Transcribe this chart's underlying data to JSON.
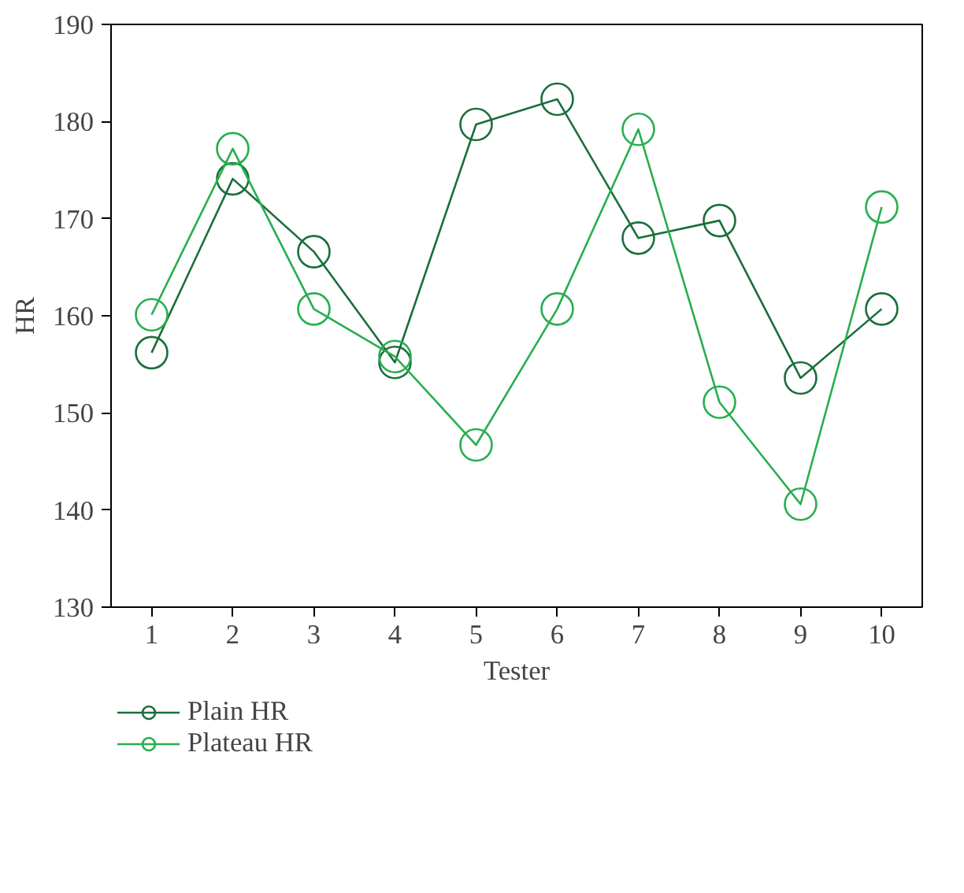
{
  "chart_data": {
    "type": "line",
    "xlabel": "Tester",
    "ylabel": "HR",
    "x": [
      1,
      2,
      3,
      4,
      5,
      6,
      7,
      8,
      9,
      10
    ],
    "xlim": [
      0.5,
      10.5
    ],
    "xticks": [
      1,
      2,
      3,
      4,
      5,
      6,
      7,
      8,
      9,
      10
    ],
    "ylim": [
      130,
      190
    ],
    "yticks": [
      130,
      140,
      150,
      160,
      170,
      180,
      190
    ],
    "series": [
      {
        "name": "Plain HR",
        "color": "#1b6e3c",
        "values": [
          156.2,
          174.1,
          166.6,
          155.2,
          179.7,
          182.3,
          168.0,
          169.8,
          153.6,
          160.7
        ]
      },
      {
        "name": "Plateau HR",
        "color": "#27ae4f",
        "values": [
          160.1,
          177.2,
          160.7,
          155.8,
          146.7,
          160.7,
          179.2,
          151.1,
          140.6,
          171.2
        ]
      }
    ],
    "marker": "circle",
    "line_style": "solid",
    "grid": false,
    "legend": "bottom"
  }
}
